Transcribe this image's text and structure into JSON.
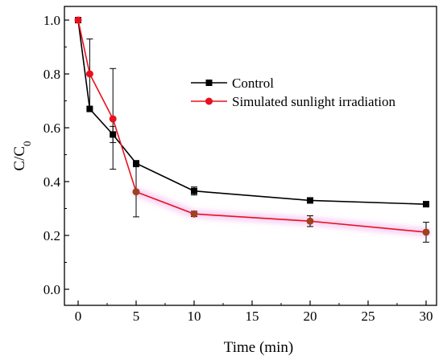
{
  "chart_data": {
    "type": "line",
    "title": "",
    "xlabel": "Time (min)",
    "ylabel": {
      "main": "C/C",
      "subscript": "0"
    },
    "xlim": [
      0,
      30
    ],
    "ylim": [
      0,
      1.0
    ],
    "x_ticks": [
      0,
      5,
      10,
      15,
      20,
      25,
      30
    ],
    "x_tick_labels": [
      "0",
      "5",
      "10",
      "15",
      "20",
      "25",
      "30"
    ],
    "y_ticks": [
      0,
      0.2,
      0.4,
      0.6,
      0.8,
      1.0
    ],
    "y_tick_labels": [
      "0.0",
      "0.2",
      "0.4",
      "0.6",
      "0.8",
      "1.0"
    ],
    "grid": false,
    "legend_position": "top-right",
    "series": [
      {
        "name": "Control",
        "color": "#000000",
        "marker": "square",
        "x": [
          0,
          1,
          3,
          5,
          10,
          20,
          30
        ],
        "y": [
          1.0,
          0.67,
          0.575,
          0.468,
          0.365,
          0.33,
          0.316
        ],
        "error": [
          0,
          0,
          0.03,
          0,
          0.015,
          0.01,
          0.01
        ]
      },
      {
        "name": "Simulated sunlight irradiation",
        "color": "#e8101e",
        "marker": "circle",
        "x": [
          0,
          1,
          3,
          5,
          10,
          20,
          30
        ],
        "y": [
          1.0,
          0.8,
          0.633,
          0.362,
          0.28,
          0.253,
          0.212
        ],
        "error": [
          0,
          0.13,
          0.187,
          0.093,
          0.01,
          0.02,
          0.037
        ]
      }
    ]
  }
}
